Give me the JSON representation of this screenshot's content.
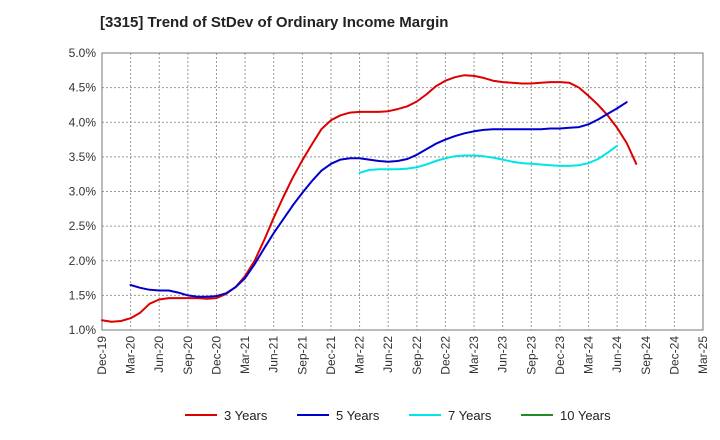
{
  "chart_data": {
    "type": "line",
    "title": "[3315]  Trend of StDev of Ordinary Income Margin",
    "xlabel": "",
    "ylabel": "",
    "ylim": [
      1.0,
      5.0
    ],
    "y_ticks": [
      "1.0%",
      "1.5%",
      "2.0%",
      "2.5%",
      "3.0%",
      "3.5%",
      "4.0%",
      "4.5%",
      "5.0%"
    ],
    "x_ticks": [
      "Dec-19",
      "Mar-20",
      "Jun-20",
      "Sep-20",
      "Dec-20",
      "Mar-21",
      "Jun-21",
      "Sep-21",
      "Dec-21",
      "Mar-22",
      "Jun-22",
      "Sep-22",
      "Dec-22",
      "Mar-23",
      "Jun-23",
      "Sep-23",
      "Dec-23",
      "Mar-24",
      "Jun-24",
      "Sep-24",
      "Dec-24",
      "Mar-25"
    ],
    "grid": true,
    "legend_position": "bottom",
    "series": [
      {
        "name": "3 Years",
        "color": "#dd0000",
        "points": [
          [
            "Dec-19",
            1.14
          ],
          [
            "Jan-20",
            1.12
          ],
          [
            "Feb-20",
            1.13
          ],
          [
            "Mar-20",
            1.17
          ],
          [
            "Apr-20",
            1.25
          ],
          [
            "May-20",
            1.38
          ],
          [
            "Jun-20",
            1.44
          ],
          [
            "Jul-20",
            1.46
          ],
          [
            "Aug-20",
            1.46
          ],
          [
            "Sep-20",
            1.46
          ],
          [
            "Oct-20",
            1.46
          ],
          [
            "Nov-20",
            1.45
          ],
          [
            "Dec-20",
            1.46
          ],
          [
            "Jan-21",
            1.52
          ],
          [
            "Feb-21",
            1.62
          ],
          [
            "Mar-21",
            1.78
          ],
          [
            "Apr-21",
            2.0
          ],
          [
            "May-21",
            2.3
          ],
          [
            "Jun-21",
            2.62
          ],
          [
            "Jul-21",
            2.92
          ],
          [
            "Aug-21",
            3.2
          ],
          [
            "Sep-21",
            3.45
          ],
          [
            "Oct-21",
            3.68
          ],
          [
            "Nov-21",
            3.9
          ],
          [
            "Dec-21",
            4.03
          ],
          [
            "Jan-22",
            4.1
          ],
          [
            "Feb-22",
            4.14
          ],
          [
            "Mar-22",
            4.15
          ],
          [
            "Apr-22",
            4.15
          ],
          [
            "May-22",
            4.15
          ],
          [
            "Jun-22",
            4.16
          ],
          [
            "Jul-22",
            4.19
          ],
          [
            "Aug-22",
            4.23
          ],
          [
            "Sep-22",
            4.3
          ],
          [
            "Oct-22",
            4.4
          ],
          [
            "Nov-22",
            4.52
          ],
          [
            "Dec-22",
            4.6
          ],
          [
            "Jan-23",
            4.65
          ],
          [
            "Feb-23",
            4.68
          ],
          [
            "Mar-23",
            4.67
          ],
          [
            "Apr-23",
            4.64
          ],
          [
            "May-23",
            4.6
          ],
          [
            "Jun-23",
            4.58
          ],
          [
            "Jul-23",
            4.57
          ],
          [
            "Aug-23",
            4.56
          ],
          [
            "Sep-23",
            4.56
          ],
          [
            "Oct-23",
            4.57
          ],
          [
            "Nov-23",
            4.58
          ],
          [
            "Dec-23",
            4.58
          ],
          [
            "Jan-24",
            4.57
          ],
          [
            "Feb-24",
            4.5
          ],
          [
            "Mar-24",
            4.38
          ],
          [
            "Apr-24",
            4.25
          ],
          [
            "May-24",
            4.1
          ],
          [
            "Jun-24",
            3.92
          ],
          [
            "Jul-24",
            3.7
          ],
          [
            "Aug-24",
            3.4
          ]
        ]
      },
      {
        "name": "5 Years",
        "color": "#0000cc",
        "points": [
          [
            "Mar-20",
            1.65
          ],
          [
            "Apr-20",
            1.61
          ],
          [
            "May-20",
            1.58
          ],
          [
            "Jun-20",
            1.57
          ],
          [
            "Jul-20",
            1.57
          ],
          [
            "Aug-20",
            1.54
          ],
          [
            "Sep-20",
            1.5
          ],
          [
            "Oct-20",
            1.48
          ],
          [
            "Nov-20",
            1.48
          ],
          [
            "Dec-20",
            1.49
          ],
          [
            "Jan-21",
            1.53
          ],
          [
            "Feb-21",
            1.62
          ],
          [
            "Mar-21",
            1.75
          ],
          [
            "Apr-21",
            1.95
          ],
          [
            "May-21",
            2.18
          ],
          [
            "Jun-21",
            2.4
          ],
          [
            "Jul-21",
            2.6
          ],
          [
            "Aug-21",
            2.8
          ],
          [
            "Sep-21",
            2.98
          ],
          [
            "Oct-21",
            3.15
          ],
          [
            "Nov-21",
            3.3
          ],
          [
            "Dec-21",
            3.4
          ],
          [
            "Jan-22",
            3.46
          ],
          [
            "Feb-22",
            3.48
          ],
          [
            "Mar-22",
            3.48
          ],
          [
            "Apr-22",
            3.46
          ],
          [
            "May-22",
            3.44
          ],
          [
            "Jun-22",
            3.43
          ],
          [
            "Jul-22",
            3.44
          ],
          [
            "Aug-22",
            3.47
          ],
          [
            "Sep-22",
            3.53
          ],
          [
            "Oct-22",
            3.61
          ],
          [
            "Nov-22",
            3.69
          ],
          [
            "Dec-22",
            3.75
          ],
          [
            "Jan-23",
            3.8
          ],
          [
            "Feb-23",
            3.84
          ],
          [
            "Mar-23",
            3.87
          ],
          [
            "Apr-23",
            3.89
          ],
          [
            "May-23",
            3.9
          ],
          [
            "Jun-23",
            3.9
          ],
          [
            "Jul-23",
            3.9
          ],
          [
            "Aug-23",
            3.9
          ],
          [
            "Sep-23",
            3.9
          ],
          [
            "Oct-23",
            3.9
          ],
          [
            "Nov-23",
            3.91
          ],
          [
            "Dec-23",
            3.91
          ],
          [
            "Jan-24",
            3.92
          ],
          [
            "Feb-24",
            3.93
          ],
          [
            "Mar-24",
            3.97
          ],
          [
            "Apr-24",
            4.04
          ],
          [
            "May-24",
            4.12
          ],
          [
            "Jun-24",
            4.2
          ],
          [
            "Jul-24",
            4.29
          ]
        ]
      },
      {
        "name": "7 Years",
        "color": "#00e5e5",
        "points": [
          [
            "Mar-22",
            3.27
          ],
          [
            "Apr-22",
            3.31
          ],
          [
            "May-22",
            3.32
          ],
          [
            "Jun-22",
            3.32
          ],
          [
            "Jul-22",
            3.32
          ],
          [
            "Aug-22",
            3.33
          ],
          [
            "Sep-22",
            3.35
          ],
          [
            "Oct-22",
            3.39
          ],
          [
            "Nov-22",
            3.44
          ],
          [
            "Dec-22",
            3.48
          ],
          [
            "Jan-23",
            3.51
          ],
          [
            "Feb-23",
            3.52
          ],
          [
            "Mar-23",
            3.52
          ],
          [
            "Apr-23",
            3.51
          ],
          [
            "May-23",
            3.49
          ],
          [
            "Jun-23",
            3.46
          ],
          [
            "Jul-23",
            3.43
          ],
          [
            "Aug-23",
            3.41
          ],
          [
            "Sep-23",
            3.4
          ],
          [
            "Oct-23",
            3.39
          ],
          [
            "Nov-23",
            3.38
          ],
          [
            "Dec-23",
            3.37
          ],
          [
            "Jan-24",
            3.37
          ],
          [
            "Feb-24",
            3.38
          ],
          [
            "Mar-24",
            3.41
          ],
          [
            "Apr-24",
            3.47
          ],
          [
            "May-24",
            3.56
          ],
          [
            "Jun-24",
            3.66
          ]
        ]
      },
      {
        "name": "10 Years",
        "color": "#228b22",
        "points": []
      }
    ]
  }
}
